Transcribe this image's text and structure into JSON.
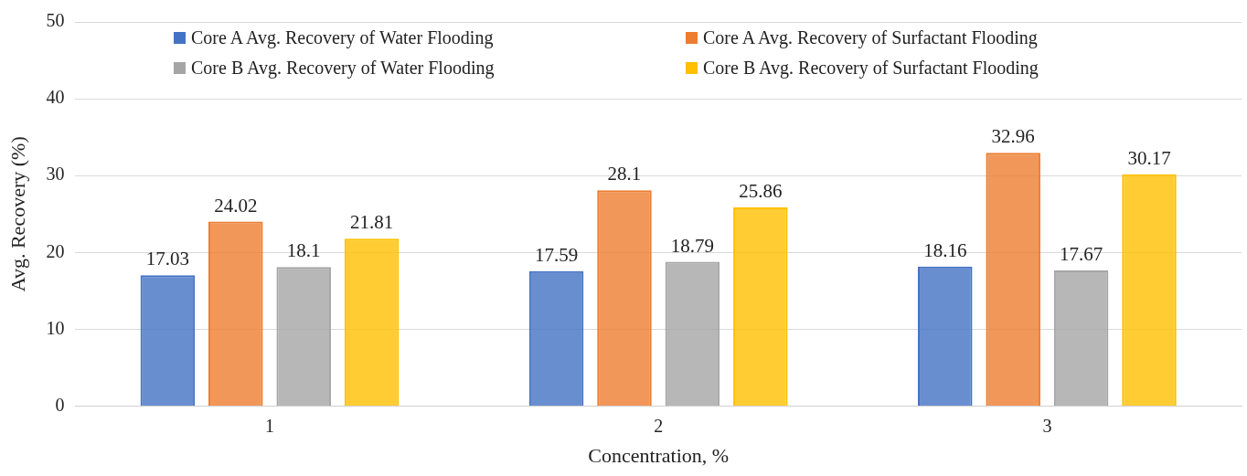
{
  "chart_data": {
    "type": "bar",
    "xlabel": "Concentration, %",
    "ylabel": "Avg. Recovery (%)",
    "categories": [
      "1",
      "2",
      "3"
    ],
    "series": [
      {
        "name": "Core A Avg. Recovery of Water Flooding",
        "color": "#4472c4",
        "values": [
          17.03,
          17.59,
          18.16
        ]
      },
      {
        "name": "Core A Avg. Recovery of Surfactant Flooding",
        "color": "#ed7d31",
        "values": [
          24.02,
          28.1,
          32.96
        ]
      },
      {
        "name": "Core B Avg. Recovery of Water Flooding",
        "color": "#a5a5a5",
        "values": [
          18.1,
          18.79,
          17.67
        ]
      },
      {
        "name": "Core B Avg. Recovery of Surfactant Flooding",
        "color": "#ffc000",
        "values": [
          21.81,
          25.86,
          30.17
        ]
      }
    ],
    "ylim": [
      0,
      50
    ],
    "yticks": [
      0,
      10,
      20,
      30,
      40,
      50
    ],
    "grid": "y",
    "legend": "top",
    "data_labels": true
  }
}
